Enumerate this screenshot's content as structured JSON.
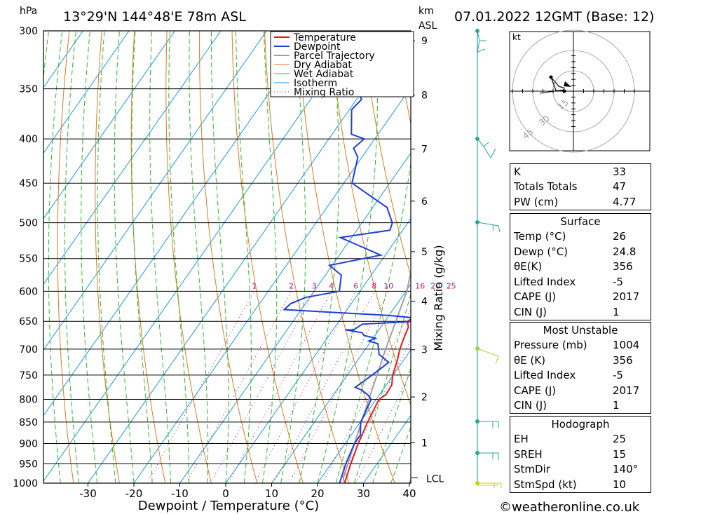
{
  "header": {
    "hpa_unit": "hPa",
    "location": "13°29'N  144°48'E  78m  ASL",
    "km_unit": "km",
    "asl_unit": "ASL",
    "datetime": "07.01.2022  12GMT  (Base: 12)"
  },
  "chart_data": {
    "type": "line",
    "xlabel": "Dewpoint / Temperature (°C)",
    "mixing_axis_label": "Mixing Ratio (g/kg)",
    "x_ticks": [
      -30,
      -20,
      -10,
      0,
      10,
      20,
      30,
      40
    ],
    "x_tick_labels": [
      "-30",
      "-20",
      "-10",
      "0",
      "10",
      "20",
      "30",
      "40"
    ],
    "pressure_levels": [
      300,
      350,
      400,
      450,
      500,
      550,
      600,
      650,
      700,
      750,
      800,
      850,
      900,
      950,
      1000
    ],
    "pressure_labels": [
      "300",
      "350",
      "400",
      "450",
      "500",
      "550",
      "600",
      "650",
      "700",
      "750",
      "800",
      "850",
      "900",
      "950",
      "1000"
    ],
    "km_ticks": [
      {
        "label": "9",
        "p": 308
      },
      {
        "label": "8",
        "p": 356
      },
      {
        "label": "7",
        "p": 411
      },
      {
        "label": "6",
        "p": 472
      },
      {
        "label": "5",
        "p": 540
      },
      {
        "label": "4",
        "p": 616
      },
      {
        "label": "3",
        "p": 701
      },
      {
        "label": "2",
        "p": 795
      },
      {
        "label": "1",
        "p": 898
      }
    ],
    "lcl_label": "LCL",
    "lcl_pressure": 986,
    "mixing_ratio_labels": [
      "1",
      "2",
      "3",
      "4",
      "6",
      "8",
      "10",
      "16",
      "20",
      "25"
    ],
    "mixing_ratio_values": [
      1,
      2,
      3,
      4,
      6,
      8,
      10,
      16,
      20,
      25
    ],
    "legend": [
      "Temperature",
      "Dewpoint",
      "Parcel Trajectory",
      "Dry Adiabat",
      "Wet Adiabat",
      "Isotherm",
      "Mixing Ratio"
    ],
    "colors": {
      "temperature": "#e8191b",
      "dewpoint": "#1f3fd8",
      "parcel": "#a0a0a0",
      "dry_adiabat": "#e07a1f",
      "wet_adiabat": "#2fb82f",
      "isotherm": "#1a9ae0",
      "mixing_ratio": "#c0127a"
    },
    "temperature": [
      [
        1000,
        25.9
      ],
      [
        950,
        24.3
      ],
      [
        900,
        22.8
      ],
      [
        850,
        21.6
      ],
      [
        800,
        20.6
      ],
      [
        790,
        21.4
      ],
      [
        770,
        21.2
      ],
      [
        750,
        19.9
      ],
      [
        720,
        18.6
      ],
      [
        700,
        17.5
      ],
      [
        680,
        16.7
      ],
      [
        660,
        16.0
      ],
      [
        650,
        14.9
      ],
      [
        640,
        16.1
      ],
      [
        620,
        16.9
      ],
      [
        600,
        15.3
      ],
      [
        580,
        13.4
      ],
      [
        550,
        10.8
      ],
      [
        520,
        8.7
      ],
      [
        500,
        7.1
      ],
      [
        480,
        5.2
      ],
      [
        450,
        2.0
      ],
      [
        430,
        0.2
      ],
      [
        400,
        -2.2
      ],
      [
        390,
        -2.4
      ],
      [
        370,
        -3.4
      ],
      [
        365,
        -3.6
      ]
    ],
    "dewpoint": [
      [
        1000,
        24.8
      ],
      [
        950,
        23.2
      ],
      [
        900,
        22.0
      ],
      [
        880,
        22.0
      ],
      [
        850,
        20.1
      ],
      [
        800,
        18.9
      ],
      [
        790,
        17.4
      ],
      [
        780,
        15.3
      ],
      [
        775,
        13.6
      ],
      [
        750,
        15.4
      ],
      [
        725,
        17.1
      ],
      [
        710,
        13.8
      ],
      [
        690,
        11.9
      ],
      [
        685,
        9.5
      ],
      [
        680,
        10.5
      ],
      [
        675,
        7.6
      ],
      [
        670,
        6.8
      ],
      [
        665,
        2.7
      ],
      [
        665,
        4.5
      ],
      [
        655,
        5.5
      ],
      [
        650,
        17.0
      ],
      [
        645,
        17.3
      ],
      [
        640,
        10.0
      ],
      [
        630,
        -13.7
      ],
      [
        620,
        -13.2
      ],
      [
        610,
        -10.9
      ],
      [
        600,
        -4.5
      ],
      [
        575,
        -6.5
      ],
      [
        560,
        -10.6
      ],
      [
        545,
        -1.0
      ],
      [
        520,
        -12.5
      ],
      [
        510,
        -2.8
      ],
      [
        500,
        -3.4
      ],
      [
        480,
        -6.9
      ],
      [
        450,
        -18.2
      ],
      [
        420,
        -20.9
      ],
      [
        410,
        -23.2
      ],
      [
        400,
        -22.3
      ],
      [
        395,
        -25.8
      ],
      [
        370,
        -29.5
      ],
      [
        360,
        -28.9
      ],
      [
        345,
        -33.0
      ],
      [
        330,
        -32.0
      ],
      [
        318,
        -37.6
      ],
      [
        303,
        -31.2
      ],
      [
        301,
        -35.4
      ],
      [
        300,
        -37.6
      ]
    ],
    "parcel": [
      [
        1000,
        25.9
      ],
      [
        986,
        24.8
      ],
      [
        900,
        22.0
      ],
      [
        800,
        18.4
      ],
      [
        700,
        14.4
      ],
      [
        600,
        10.2
      ],
      [
        550,
        6.7
      ],
      [
        500,
        2.6
      ],
      [
        450,
        -1.8
      ],
      [
        400,
        -6.8
      ],
      [
        370,
        -10.0
      ]
    ]
  },
  "hodograph": {
    "unit": "kt",
    "ring_labels": [
      "15",
      "30",
      "45"
    ]
  },
  "indices": {
    "rows": [
      {
        "label": "K",
        "value": "33"
      },
      {
        "label": "Totals Totals",
        "value": "47"
      },
      {
        "label": "PW (cm)",
        "value": "4.77"
      }
    ]
  },
  "surface": {
    "heading": "Surface",
    "rows": [
      {
        "label": "Temp (°C)",
        "value": "26"
      },
      {
        "label": "Dewp (°C)",
        "value": "24.8"
      },
      {
        "label": "θE(K)",
        "value": "356"
      },
      {
        "label": "Lifted Index",
        "value": "-5"
      },
      {
        "label": "CAPE (J)",
        "value": "2017"
      },
      {
        "label": "CIN (J)",
        "value": "1"
      }
    ]
  },
  "most_unstable": {
    "heading": "Most Unstable",
    "rows": [
      {
        "label": "Pressure (mb)",
        "value": "1004"
      },
      {
        "label": "θE (K)",
        "value": "356"
      },
      {
        "label": "Lifted Index",
        "value": "-5"
      },
      {
        "label": "CAPE (J)",
        "value": "2017"
      },
      {
        "label": "CIN (J)",
        "value": "1"
      }
    ]
  },
  "hodograph_table": {
    "heading": "Hodograph",
    "rows": [
      {
        "label": "EH",
        "value": "25"
      },
      {
        "label": "SREH",
        "value": "15"
      },
      {
        "label": "StmDir",
        "value": "140°"
      },
      {
        "label": "StmSpd (kt)",
        "value": "10"
      }
    ]
  },
  "footer": {
    "copyright": "©weatheronline.co.uk"
  }
}
